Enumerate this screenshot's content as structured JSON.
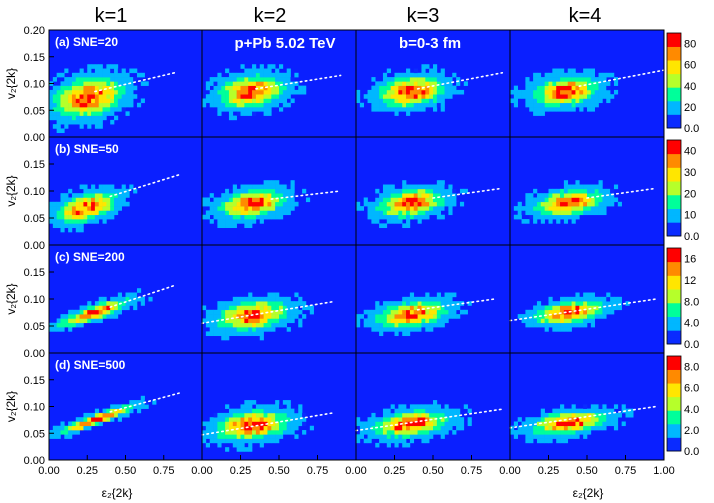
{
  "chart_data": {
    "type": "heatmap",
    "title": "",
    "column_headers": [
      "k=1",
      "k=2",
      "k=3",
      "k=4"
    ],
    "annotations": [
      "p+Pb 5.02 TeV",
      "b=0-3 fm"
    ],
    "xlabel": "ε₂{2k}",
    "ylabel": "v₂{2k}",
    "xlim": [
      0.0,
      1.0
    ],
    "ylim": [
      0.0,
      0.2
    ],
    "x_ticks_first_col": [
      "0.00",
      "0.25",
      "0.50",
      "0.75"
    ],
    "x_ticks_other_cols": [
      "0.00",
      "0.25",
      "0.50",
      "0.75"
    ],
    "x_ticks_last_col": [
      "0.00",
      "0.25",
      "0.50",
      "0.75",
      "1.00"
    ],
    "y_ticks_row1": [
      "0.00",
      "0.05",
      "0.10",
      "0.15",
      "0.20"
    ],
    "y_ticks_other_rows": [
      "0.00",
      "0.05",
      "0.10",
      "0.15"
    ],
    "colormap": [
      "#0a2bff",
      "#00b7ff",
      "#00ff9a",
      "#b6ff2a",
      "#ffe600",
      "#ff8a00",
      "#ff0000"
    ],
    "background_color": "#0a1fff",
    "rows": [
      {
        "label": "(a) SNE=20",
        "colorbar_ticks": [
          "80",
          "60",
          "40",
          "20",
          "0.0"
        ],
        "colorbar_max": 90,
        "panels": [
          {
            "k": 1,
            "center": [
              0.26,
              0.075
            ],
            "spread_x": 0.14,
            "spread_y": 0.022,
            "slope": 0.05,
            "fit_line": [
              [
                0.3,
                0.085
              ],
              [
                0.82,
                0.12
              ]
            ]
          },
          {
            "k": 2,
            "center": [
              0.32,
              0.085
            ],
            "spread_x": 0.13,
            "spread_y": 0.018,
            "slope": 0.03,
            "fit_line": [
              [
                0.35,
                0.09
              ],
              [
                0.9,
                0.115
              ]
            ]
          },
          {
            "k": 3,
            "center": [
              0.36,
              0.085
            ],
            "spread_x": 0.13,
            "spread_y": 0.017,
            "slope": 0.03,
            "fit_line": [
              [
                0.4,
                0.09
              ],
              [
                0.95,
                0.12
              ]
            ]
          },
          {
            "k": 4,
            "center": [
              0.36,
              0.085
            ],
            "spread_x": 0.13,
            "spread_y": 0.016,
            "slope": 0.03,
            "fit_line": [
              [
                0.45,
                0.095
              ],
              [
                1.0,
                0.125
              ]
            ]
          }
        ]
      },
      {
        "label": "(b) SNE=50",
        "colorbar_ticks": [
          "40",
          "30",
          "20",
          "10",
          "0.0"
        ],
        "colorbar_max": 45,
        "panels": [
          {
            "k": 1,
            "center": [
              0.25,
              0.07
            ],
            "spread_x": 0.12,
            "spread_y": 0.015,
            "slope": 0.07,
            "fit_line": [
              [
                0.4,
                0.09
              ],
              [
                0.85,
                0.13
              ]
            ]
          },
          {
            "k": 2,
            "center": [
              0.33,
              0.077
            ],
            "spread_x": 0.13,
            "spread_y": 0.015,
            "slope": 0.04,
            "fit_line": [
              [
                0.45,
                0.085
              ],
              [
                0.9,
                0.1
              ]
            ]
          },
          {
            "k": 3,
            "center": [
              0.36,
              0.078
            ],
            "spread_x": 0.13,
            "spread_y": 0.015,
            "slope": 0.04,
            "fit_line": [
              [
                0.5,
                0.087
              ],
              [
                0.95,
                0.105
              ]
            ]
          },
          {
            "k": 4,
            "center": [
              0.38,
              0.078
            ],
            "spread_x": 0.13,
            "spread_y": 0.014,
            "slope": 0.04,
            "fit_line": [
              [
                0.5,
                0.087
              ],
              [
                0.95,
                0.105
              ]
            ]
          }
        ]
      },
      {
        "label": "(c) SNE=200",
        "colorbar_ticks": [
          "16",
          "12",
          "8.0",
          "4.0",
          "0.0"
        ],
        "colorbar_max": 18,
        "panels": [
          {
            "k": 1,
            "center": [
              0.3,
              0.075
            ],
            "spread_x": 0.14,
            "spread_y": 0.008,
            "slope": 0.09,
            "fit_line": [
              [
                0.4,
                0.085
              ],
              [
                0.82,
                0.125
              ]
            ]
          },
          {
            "k": 2,
            "center": [
              0.33,
              0.07
            ],
            "spread_x": 0.14,
            "spread_y": 0.016,
            "slope": 0.03,
            "fit_line": [
              [
                0.0,
                0.055
              ],
              [
                0.85,
                0.095
              ]
            ]
          },
          {
            "k": 3,
            "center": [
              0.36,
              0.072
            ],
            "spread_x": 0.14,
            "spread_y": 0.014,
            "slope": 0.04,
            "fit_line": [
              [
                0.4,
                0.08
              ],
              [
                0.9,
                0.1
              ]
            ]
          },
          {
            "k": 4,
            "center": [
              0.38,
              0.075
            ],
            "spread_x": 0.14,
            "spread_y": 0.012,
            "slope": 0.04,
            "fit_line": [
              [
                0.0,
                0.06
              ],
              [
                0.95,
                0.1
              ]
            ]
          }
        ]
      },
      {
        "label": "(d) SNE=500",
        "colorbar_ticks": [
          "8.0",
          "6.0",
          "4.0",
          "2.0",
          "0.0"
        ],
        "colorbar_max": 9,
        "panels": [
          {
            "k": 1,
            "center": [
              0.3,
              0.075
            ],
            "spread_x": 0.15,
            "spread_y": 0.006,
            "slope": 0.1,
            "fit_line": [
              [
                0.4,
                0.09
              ],
              [
                0.85,
                0.125
              ]
            ]
          },
          {
            "k": 2,
            "center": [
              0.33,
              0.065
            ],
            "spread_x": 0.15,
            "spread_y": 0.016,
            "slope": 0.03,
            "fit_line": [
              [
                0.0,
                0.047
              ],
              [
                0.85,
                0.088
              ]
            ]
          },
          {
            "k": 3,
            "center": [
              0.36,
              0.068
            ],
            "spread_x": 0.15,
            "spread_y": 0.014,
            "slope": 0.04,
            "fit_line": [
              [
                0.0,
                0.055
              ],
              [
                0.95,
                0.095
              ]
            ]
          },
          {
            "k": 4,
            "center": [
              0.38,
              0.07
            ],
            "spread_x": 0.15,
            "spread_y": 0.012,
            "slope": 0.04,
            "fit_line": [
              [
                0.0,
                0.06
              ],
              [
                0.95,
                0.1
              ]
            ]
          }
        ]
      }
    ]
  }
}
